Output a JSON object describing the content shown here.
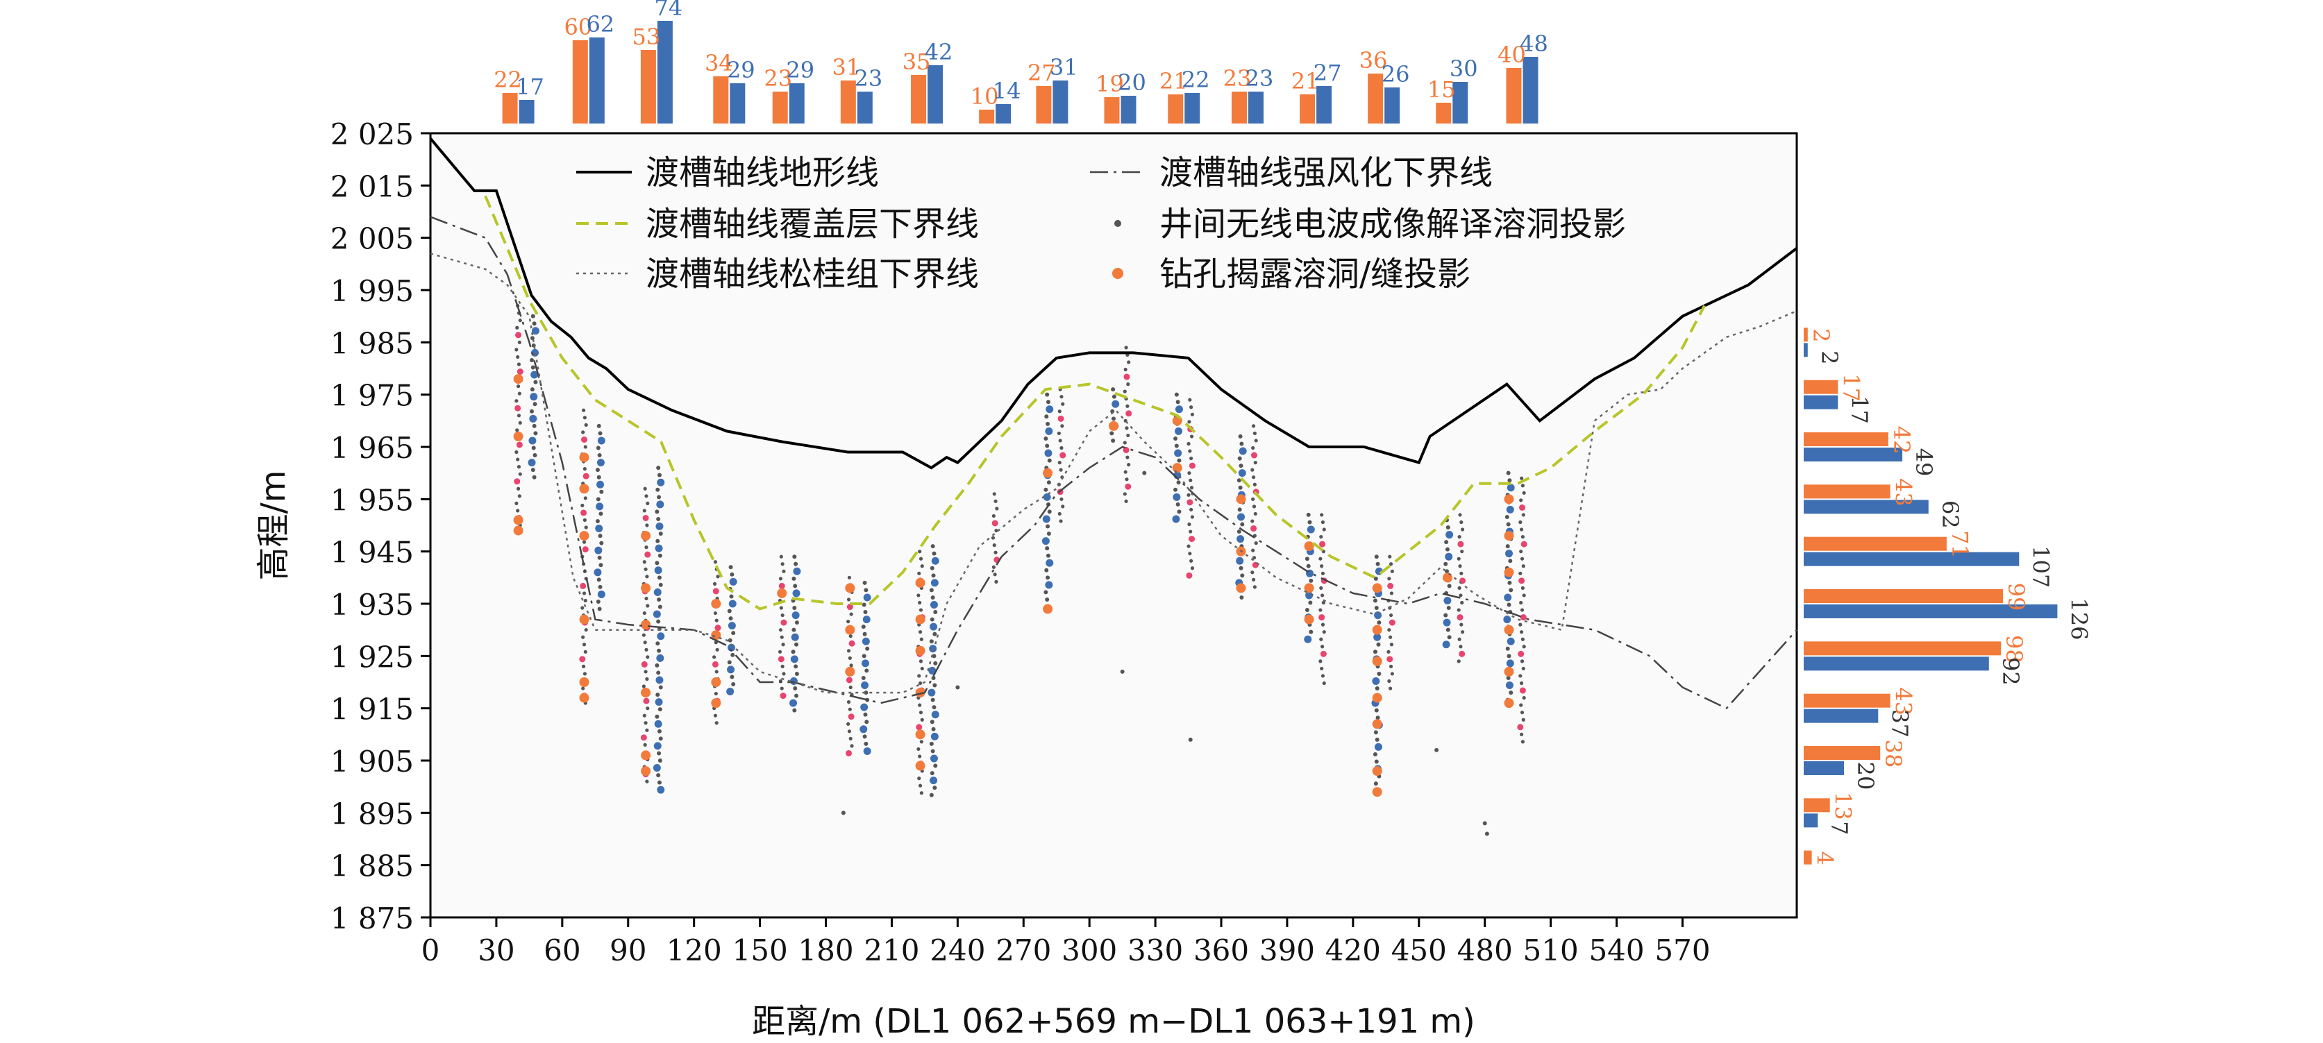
{
  "chart_data": {
    "type": "line",
    "xlabel": "距离/m (DL1 062+569 m−DL1 063+191 m)",
    "ylabel": "高程/m",
    "xlim": [
      0,
      622
    ],
    "ylim": [
      1875,
      2025
    ],
    "x_ticks": [
      0,
      30,
      60,
      90,
      120,
      150,
      180,
      210,
      240,
      270,
      300,
      330,
      360,
      390,
      420,
      450,
      480,
      510,
      540,
      570
    ],
    "y_ticks": [
      1875,
      1885,
      1895,
      1905,
      1915,
      1925,
      1935,
      1945,
      1955,
      1965,
      1975,
      1985,
      1995,
      2005,
      2015,
      2025
    ],
    "y_tick_labels": [
      "1 875",
      "1 885",
      "1 895",
      "1 905",
      "1 915",
      "1 925",
      "1 935",
      "1 945",
      "1 955",
      "1 965",
      "1 975",
      "1 985",
      "1 995",
      "2 005",
      "2 015",
      "2 025"
    ],
    "colors": {
      "orange": "#f27a3a",
      "blue": "#3e6fb3",
      "pink": "#e8446e",
      "grey": "#555555",
      "yellowgreen": "#b8c52a"
    },
    "legend": {
      "placement": "top",
      "items": [
        {
          "label": "渡槽轴线地形线",
          "style": "solid"
        },
        {
          "label": "渡槽轴线强风化下界线",
          "style": "dashdot"
        },
        {
          "label": "渡槽轴线覆盖层下界线",
          "style": "dashed-yellowgreen"
        },
        {
          "label": "井间无线电波成像解译溶洞投影",
          "style": "dot-grey"
        },
        {
          "label": "渡槽轴线松桂组下界线",
          "style": "dotted"
        },
        {
          "label": "钻孔揭露溶洞/缝投影",
          "style": "dot-orange"
        }
      ]
    },
    "series": [
      {
        "name": "渡槽轴线地形线",
        "x": [
          0,
          10,
          20,
          25,
          30,
          38,
          46,
          55,
          64,
          72,
          80,
          90,
          110,
          135,
          160,
          190,
          215,
          228,
          235,
          240,
          260,
          272,
          285,
          300,
          320,
          345,
          360,
          380,
          400,
          425,
          450,
          455,
          490,
          505,
          530,
          548,
          570,
          585,
          600,
          622
        ],
        "y": [
          2024,
          2019,
          2014,
          2014,
          2014,
          2004,
          1994,
          1989,
          1986,
          1982,
          1980,
          1976,
          1972,
          1968,
          1966,
          1964,
          1964,
          1961,
          1963,
          1962,
          1970,
          1977,
          1982,
          1983,
          1983,
          1982,
          1976,
          1970,
          1965,
          1965,
          1962,
          1967,
          1977,
          1970,
          1978,
          1982,
          1990,
          1993,
          1996,
          2003
        ]
      },
      {
        "name": "渡槽轴线覆盖层下界线",
        "x": [
          25,
          35,
          45,
          60,
          75,
          90,
          105,
          120,
          135,
          150,
          165,
          185,
          200,
          215,
          230,
          245,
          260,
          280,
          300,
          320,
          340,
          360,
          385,
          410,
          430,
          445,
          460,
          475,
          495,
          510,
          530,
          552,
          570,
          580
        ],
        "y": [
          2013,
          2003,
          1993,
          1982,
          1974,
          1970,
          1966,
          1951,
          1938,
          1934,
          1936,
          1935,
          1935,
          1941,
          1950,
          1958,
          1967,
          1976,
          1977,
          1974,
          1971,
          1963,
          1952,
          1944,
          1940,
          1945,
          1950,
          1958,
          1958,
          1961,
          1968,
          1975,
          1984,
          1992
        ]
      },
      {
        "name": "渡槽轴线强风化下界线",
        "x": [
          0,
          25,
          35,
          45,
          60,
          75,
          90,
          120,
          135,
          150,
          165,
          185,
          205,
          225,
          240,
          260,
          275,
          285,
          300,
          315,
          330,
          350,
          370,
          400,
          420,
          445,
          460,
          480,
          500,
          530,
          555,
          570,
          590,
          622
        ],
        "y": [
          2009,
          2005,
          1998,
          1985,
          1962,
          1932,
          1931,
          1930,
          1927,
          1920,
          1920,
          1918,
          1916,
          1918,
          1930,
          1944,
          1950,
          1956,
          1961,
          1965,
          1963,
          1955,
          1949,
          1941,
          1937,
          1935,
          1937,
          1935,
          1932,
          1930,
          1925,
          1919,
          1915,
          1930
        ]
      },
      {
        "name": "渡槽轴线松桂组下界线",
        "x": [
          0,
          25,
          35,
          45,
          55,
          65,
          75,
          95,
          120,
          135,
          150,
          165,
          180,
          200,
          215,
          225,
          235,
          250,
          270,
          285,
          300,
          312,
          325,
          340,
          360,
          385,
          410,
          430,
          445,
          460,
          475,
          495,
          515,
          530,
          545,
          560,
          570,
          590,
          605,
          622
        ],
        "y": [
          2002,
          1999,
          1996,
          1990,
          1965,
          1940,
          1930,
          1930,
          1930,
          1928,
          1922,
          1920,
          1918,
          1918,
          1918,
          1920,
          1935,
          1946,
          1953,
          1957,
          1968,
          1972,
          1966,
          1960,
          1948,
          1940,
          1935,
          1933,
          1936,
          1942,
          1937,
          1932,
          1930,
          1970,
          1975,
          1976,
          1980,
          1986,
          1988,
          1991
        ]
      }
    ],
    "scatter": {
      "boreholes": [
        {
          "x": 40,
          "top": 1992,
          "bottom": 1948,
          "orange": [
            1978,
            1967,
            1951,
            1949
          ]
        },
        {
          "x": 47,
          "top": 1990,
          "bottom": 1958,
          "orange": []
        },
        {
          "x": 70,
          "top": 1972,
          "bottom": 1915,
          "orange": [
            1963,
            1957,
            1948,
            1932,
            1920,
            1917
          ]
        },
        {
          "x": 77,
          "top": 1969,
          "bottom": 1933,
          "orange": []
        },
        {
          "x": 98,
          "top": 1957,
          "bottom": 1900,
          "orange": [
            1948,
            1938,
            1931,
            1918,
            1906,
            1903
          ]
        },
        {
          "x": 104,
          "top": 1961,
          "bottom": 1898,
          "orange": []
        },
        {
          "x": 130,
          "top": 1943,
          "bottom": 1912,
          "orange": [
            1935,
            1929,
            1920,
            1916
          ]
        },
        {
          "x": 137,
          "top": 1942,
          "bottom": 1918,
          "orange": []
        },
        {
          "x": 160,
          "top": 1944,
          "bottom": 1916,
          "orange": [
            1937
          ]
        },
        {
          "x": 166,
          "top": 1944,
          "bottom": 1914,
          "orange": []
        },
        {
          "x": 191,
          "top": 1940,
          "bottom": 1905,
          "orange": [
            1938,
            1930,
            1922
          ]
        },
        {
          "x": 198,
          "top": 1939,
          "bottom": 1906,
          "orange": []
        },
        {
          "x": 223,
          "top": 1945,
          "bottom": 1898,
          "orange": [
            1939,
            1932,
            1926,
            1918,
            1910,
            1904
          ]
        },
        {
          "x": 229,
          "top": 1946,
          "bottom": 1897,
          "orange": []
        },
        {
          "x": 257,
          "top": 1956,
          "bottom": 1938,
          "orange": []
        },
        {
          "x": 281,
          "top": 1975,
          "bottom": 1935,
          "orange": [
            1960,
            1934
          ]
        },
        {
          "x": 287,
          "top": 1976,
          "bottom": 1950,
          "orange": []
        },
        {
          "x": 311,
          "top": 1976,
          "bottom": 1965,
          "orange": [
            1969
          ]
        },
        {
          "x": 317,
          "top": 1984,
          "bottom": 1954,
          "orange": []
        },
        {
          "x": 340,
          "top": 1975,
          "bottom": 1950,
          "orange": [
            1970,
            1961
          ]
        },
        {
          "x": 346,
          "top": 1974,
          "bottom": 1940,
          "orange": []
        },
        {
          "x": 369,
          "top": 1967,
          "bottom": 1935,
          "orange": [
            1955,
            1945,
            1938
          ]
        },
        {
          "x": 375,
          "top": 1969,
          "bottom": 1938,
          "orange": []
        },
        {
          "x": 400,
          "top": 1952,
          "bottom": 1928,
          "orange": [
            1946,
            1938,
            1932
          ]
        },
        {
          "x": 406,
          "top": 1952,
          "bottom": 1919,
          "orange": []
        },
        {
          "x": 431,
          "top": 1944,
          "bottom": 1900,
          "orange": [
            1938,
            1930,
            1924,
            1917,
            1912,
            1903,
            1899
          ]
        },
        {
          "x": 437,
          "top": 1944,
          "bottom": 1918,
          "orange": []
        },
        {
          "x": 463,
          "top": 1951,
          "bottom": 1926,
          "orange": [
            1940
          ]
        },
        {
          "x": 469,
          "top": 1952,
          "bottom": 1923,
          "orange": []
        },
        {
          "x": 491,
          "top": 1960,
          "bottom": 1916,
          "orange": [
            1955,
            1948,
            1941,
            1930,
            1922,
            1916
          ]
        },
        {
          "x": 497,
          "top": 1959,
          "bottom": 1908,
          "orange": []
        }
      ],
      "outliers": [
        {
          "x": 188,
          "y": 1895
        },
        {
          "x": 481,
          "y": 1891
        },
        {
          "x": 480,
          "y": 1893
        },
        {
          "x": 315,
          "y": 1922
        },
        {
          "x": 458,
          "y": 1907
        },
        {
          "x": 346,
          "y": 1909
        },
        {
          "x": 240,
          "y": 1919
        },
        {
          "x": 325,
          "y": 1960
        }
      ]
    },
    "top_histogram": {
      "x": [
        40,
        72,
        103,
        136,
        163,
        194,
        226,
        257,
        283,
        314,
        343,
        372,
        403,
        434,
        465,
        497
      ],
      "orange": [
        22,
        60,
        53,
        34,
        23,
        31,
        35,
        10,
        27,
        19,
        21,
        23,
        21,
        36,
        15,
        40
      ],
      "blue": [
        17,
        62,
        74,
        29,
        29,
        23,
        42,
        14,
        31,
        20,
        22,
        23,
        27,
        26,
        30,
        48
      ]
    },
    "side_histogram": {
      "y": [
        1985,
        1975,
        1965,
        1955,
        1945,
        1935,
        1925,
        1915,
        1905,
        1895,
        1885
      ],
      "orange": [
        2,
        17,
        42,
        43,
        71,
        99,
        98,
        43,
        38,
        13,
        4
      ],
      "blue": [
        2,
        17,
        49,
        62,
        107,
        126,
        92,
        37,
        20,
        7,
        0
      ]
    }
  }
}
